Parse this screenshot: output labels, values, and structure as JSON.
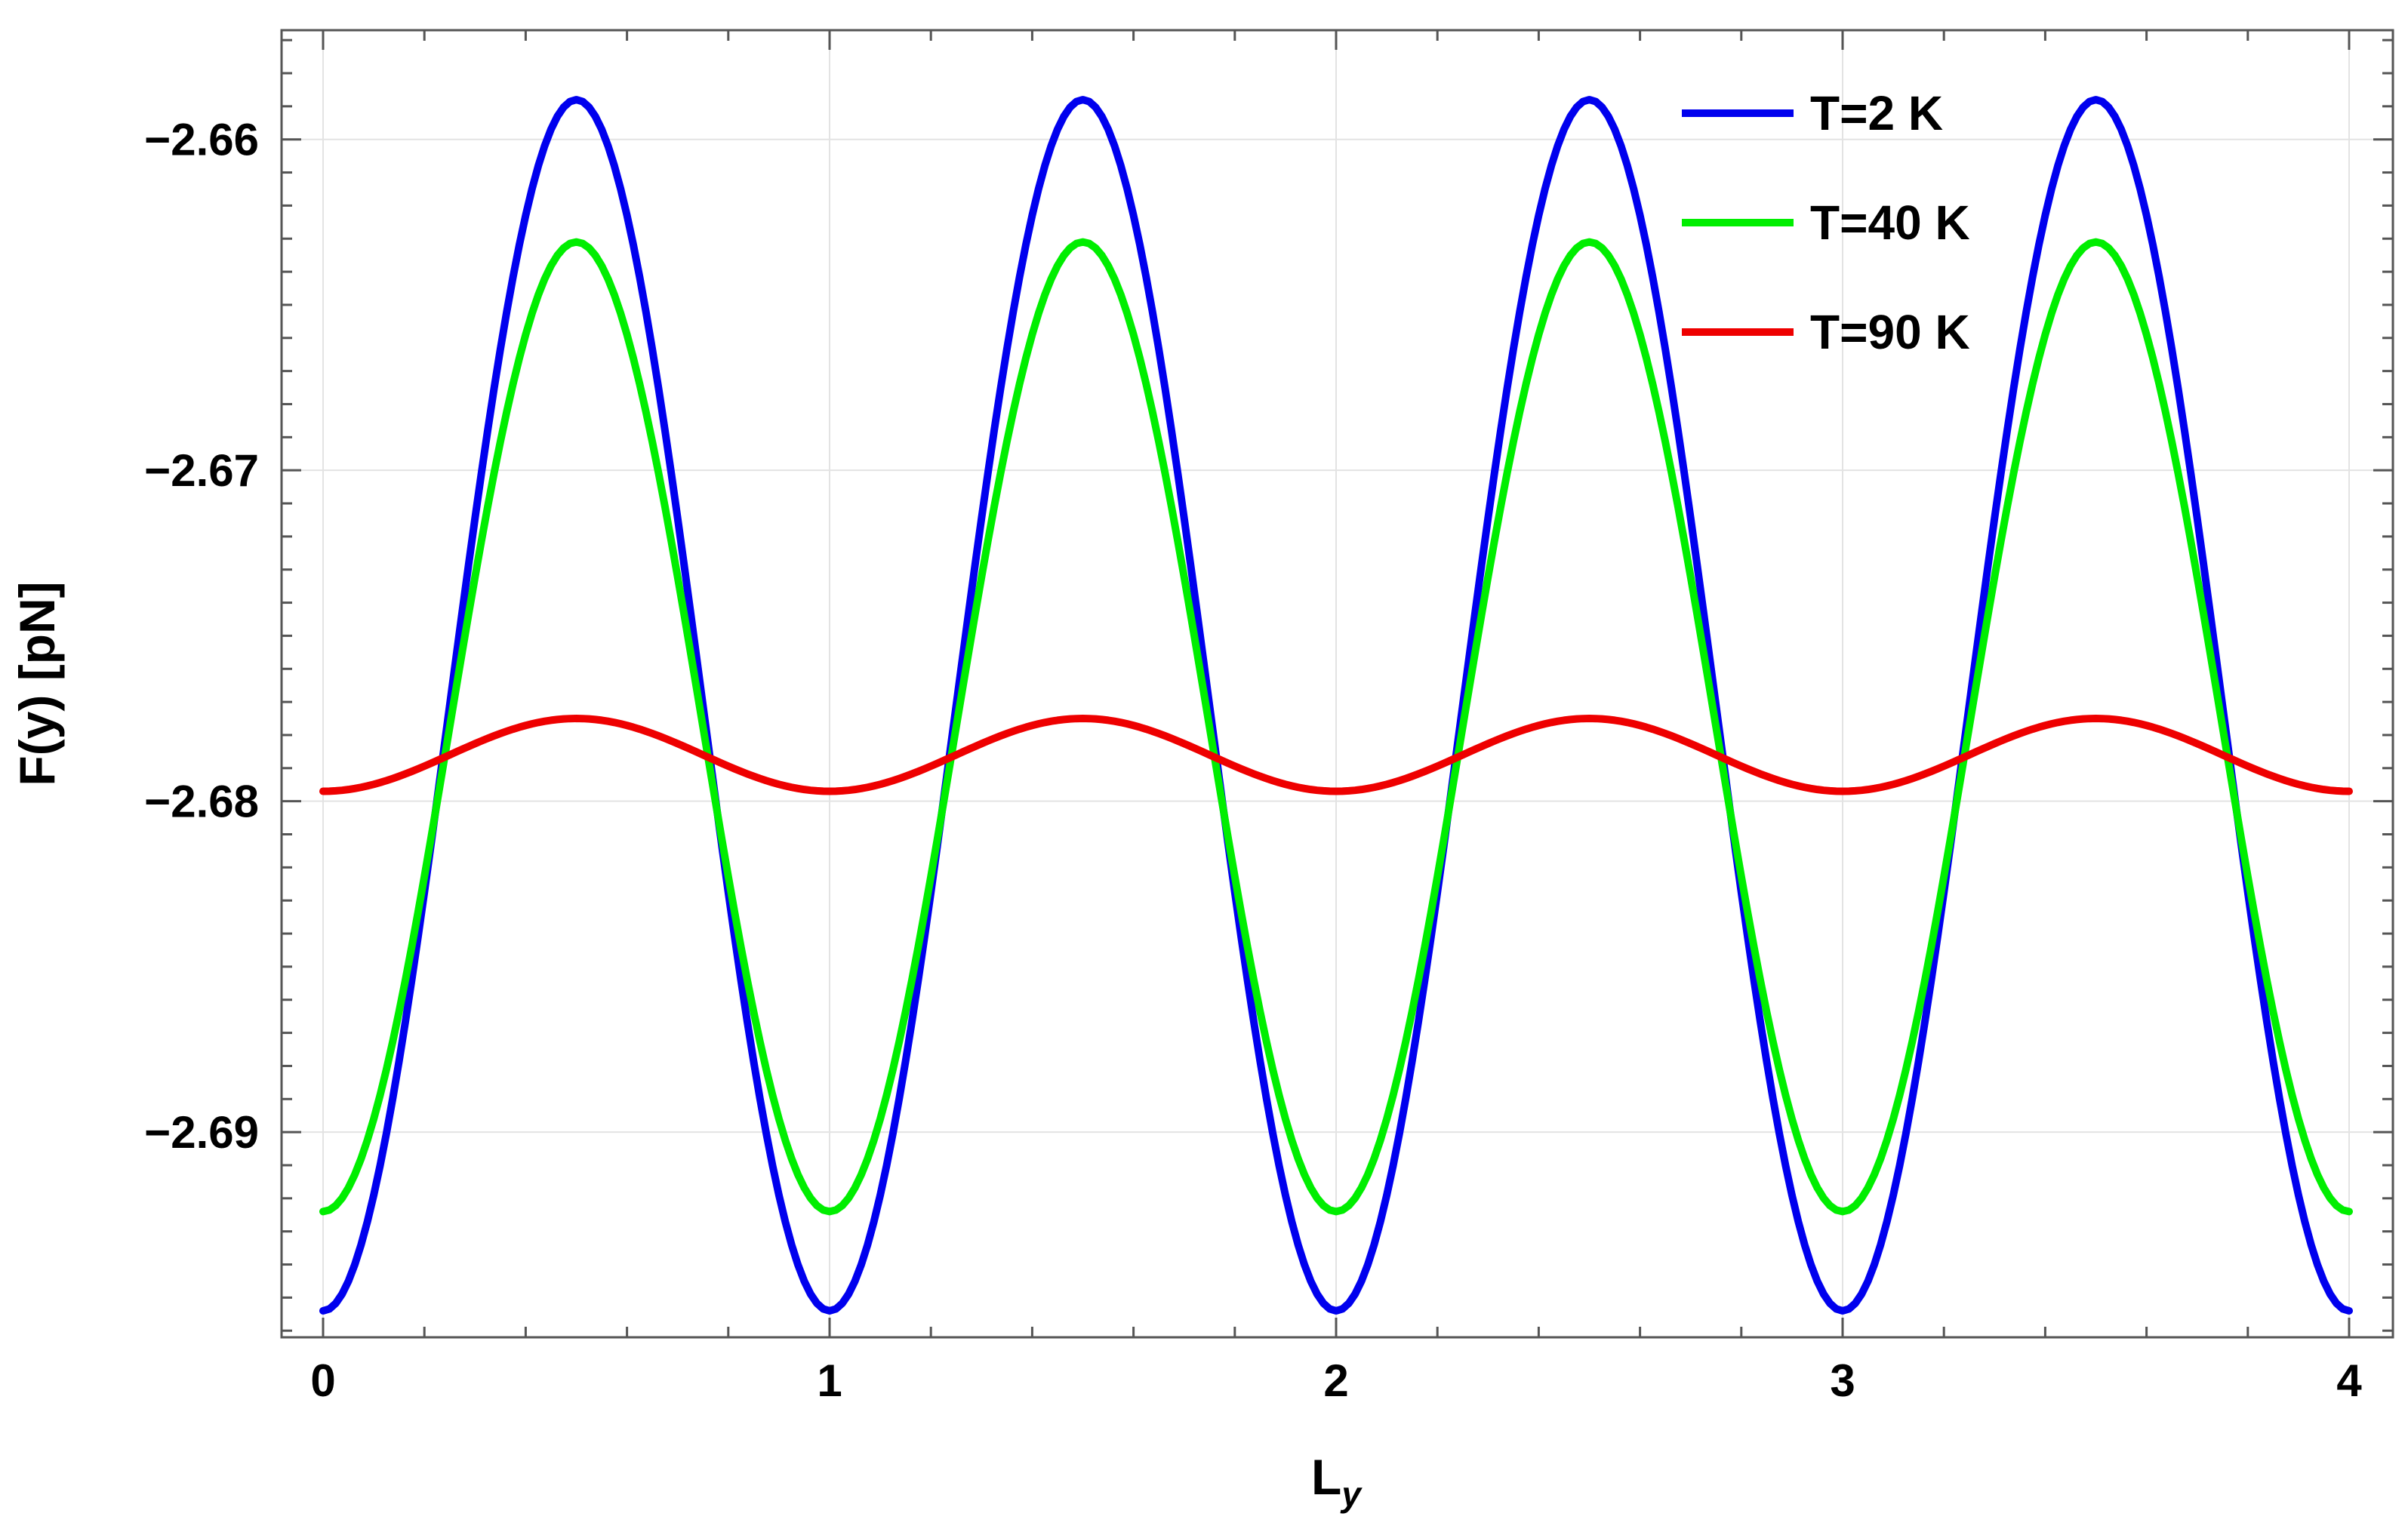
{
  "chart_data": {
    "type": "line",
    "xlabel": "L",
    "xlabel_subscript": "y",
    "ylabel": "F(y) [pN]",
    "xlim": [
      0,
      4
    ],
    "ylim": [
      -2.6962,
      -2.6567
    ],
    "grid": true,
    "legend_position": "top-right",
    "x_ticks": [
      {
        "value": 0,
        "label": "0"
      },
      {
        "value": 1,
        "label": "1"
      },
      {
        "value": 2,
        "label": "2"
      },
      {
        "value": 3,
        "label": "3"
      },
      {
        "value": 4,
        "label": "4"
      }
    ],
    "y_ticks": [
      {
        "value": -2.66,
        "label": "−2.66"
      },
      {
        "value": -2.67,
        "label": "−2.67"
      },
      {
        "value": -2.68,
        "label": "−2.68"
      },
      {
        "value": -2.69,
        "label": "−2.69"
      }
    ],
    "series": [
      {
        "name": "T=2 K",
        "color": "#0000ee",
        "x": [
          0,
          0.5,
          1,
          1.5,
          2,
          2.5,
          3,
          3.5,
          4
        ],
        "y": [
          -2.6954,
          -2.6588,
          -2.6954,
          -2.6588,
          -2.6954,
          -2.6588,
          -2.6954,
          -2.6588,
          -2.6954
        ]
      },
      {
        "name": "T=40 K",
        "color": "#00ee00",
        "x": [
          0,
          0.5,
          1,
          1.5,
          2,
          2.5,
          3,
          3.5,
          4
        ],
        "y": [
          -2.6924,
          -2.6631,
          -2.6924,
          -2.6631,
          -2.6924,
          -2.6631,
          -2.6924,
          -2.6631,
          -2.6924
        ]
      },
      {
        "name": "T=90 K",
        "color": "#ee0000",
        "x": [
          0,
          0.5,
          1,
          1.5,
          2,
          2.5,
          3,
          3.5,
          4
        ],
        "y": [
          -2.6797,
          -2.6775,
          -2.6797,
          -2.6775,
          -2.6797,
          -2.6775,
          -2.6797,
          -2.6775,
          -2.6797
        ]
      }
    ]
  }
}
